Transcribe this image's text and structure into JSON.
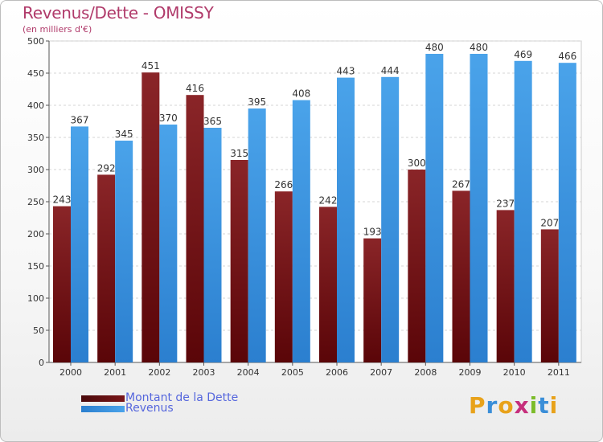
{
  "header": {
    "title": "Revenus/Dette - OMISSY",
    "subtitle": "(en milliers d'€)"
  },
  "colors": {
    "debt": "#7a1518",
    "revenue": "#3f97e0",
    "title": "#b03a6a",
    "legend_text": "#5566dd"
  },
  "chart_data": {
    "type": "bar",
    "title": "Revenus/Dette - OMISSY",
    "subtitle": "(en milliers d'€)",
    "categories": [
      "2000",
      "2001",
      "2002",
      "2003",
      "2004",
      "2005",
      "2006",
      "2007",
      "2008",
      "2009",
      "2010",
      "2011"
    ],
    "series": [
      {
        "name": "Montant de la Dette",
        "values": [
          243,
          292,
          451,
          416,
          315,
          266,
          242,
          193,
          300,
          267,
          237,
          207
        ]
      },
      {
        "name": "Revenus",
        "values": [
          367,
          345,
          370,
          365,
          395,
          408,
          443,
          444,
          480,
          480,
          469,
          466
        ]
      }
    ],
    "yticks": [
      0,
      50,
      100,
      150,
      200,
      250,
      300,
      350,
      400,
      450,
      500
    ],
    "ylim": [
      0,
      500
    ],
    "grid": true,
    "legend_position": "bottom-left"
  },
  "legend": {
    "items": [
      {
        "label": "Montant de la Dette"
      },
      {
        "label": "Revenus"
      }
    ]
  },
  "logo": {
    "letters": [
      "P",
      "r",
      "o",
      "x",
      "i",
      "t",
      "i"
    ],
    "colors": [
      "#e8a21a",
      "#3a8ed8",
      "#e8a21a",
      "#c62f7c",
      "#7cbc2a",
      "#3a8ed8",
      "#e8a21a"
    ]
  }
}
